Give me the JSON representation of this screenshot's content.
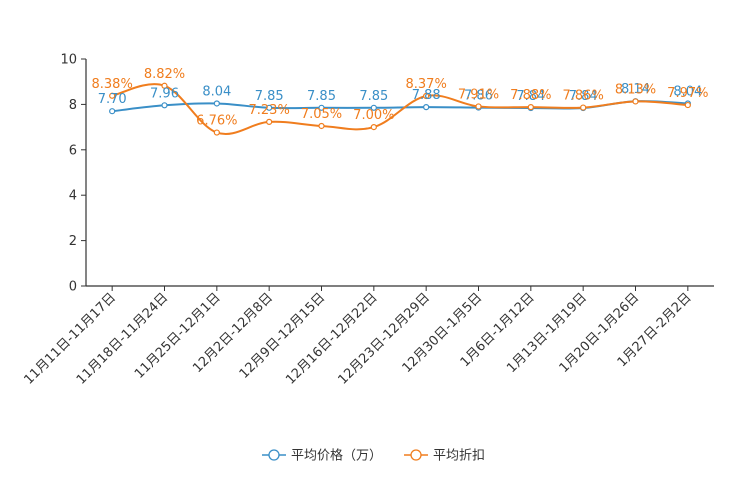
{
  "chart_data": {
    "type": "line",
    "title": "",
    "xlabel": "",
    "ylabel": "",
    "ylim": [
      0,
      10
    ],
    "yticks": [
      0,
      2,
      4,
      6,
      8,
      10
    ],
    "grid": false,
    "legend_position": "bottom-center",
    "categories": [
      "11月11日-11月17日",
      "11月18日-11月24日",
      "11月25日-12月1日",
      "12月2日-12月8日",
      "12月9日-12月15日",
      "12月16日-12月22日",
      "12月23日-12月29日",
      "12月30日-1月5日",
      "1月6日-1月12日",
      "1月13日-1月19日",
      "1月20日-1月26日",
      "1月27日-2月2日"
    ],
    "series": [
      {
        "name": "平均价格（万）",
        "color": "#3a8fc7",
        "values": [
          7.7,
          7.96,
          8.04,
          7.85,
          7.85,
          7.85,
          7.88,
          7.86,
          7.84,
          7.84,
          8.14,
          8.04
        ],
        "labels": [
          "7.70",
          "7.96",
          "8.04",
          "7.85",
          "7.85",
          "7.85",
          "7.88",
          "7.86",
          "7.84",
          "7.84",
          "8.14",
          "8.04"
        ]
      },
      {
        "name": "平均折扣",
        "color": "#f07d1e",
        "values": [
          8.38,
          8.82,
          6.76,
          7.23,
          7.05,
          7.0,
          8.37,
          7.91,
          7.88,
          7.86,
          8.13,
          7.97
        ],
        "labels": [
          "8.38%",
          "8.82%",
          "6.76%",
          "7.23%",
          "7.05%",
          "7.00%",
          "8.37%",
          "7.91%",
          "7.88%",
          "7.86%",
          "8.13%",
          "7.97%"
        ]
      }
    ]
  }
}
